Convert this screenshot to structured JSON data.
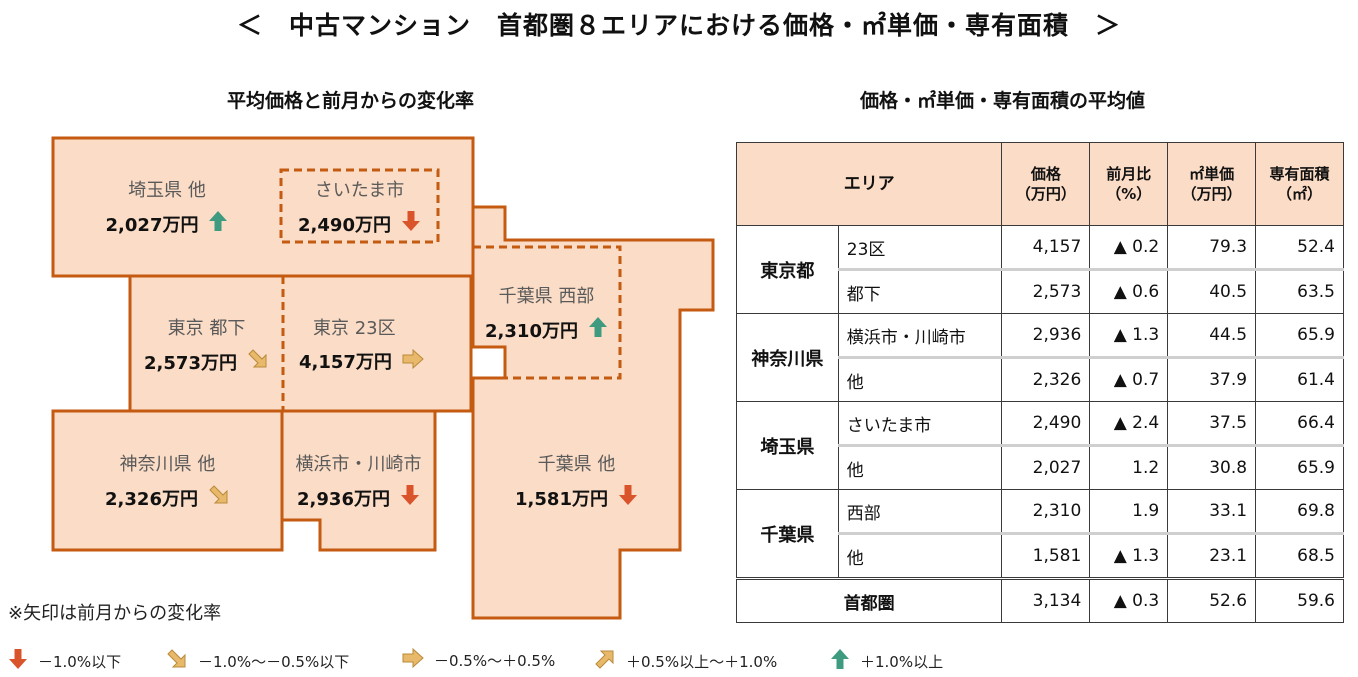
{
  "title": "＜　中古マンション　首都圏８エリアにおける価格・㎡単価・専有面積　＞",
  "map": {
    "heading": "平均価格と前月からの変化率",
    "regions": [
      {
        "id": "saitama-other",
        "name": "埼玉県 他",
        "price": "2,027万円",
        "trend": "up"
      },
      {
        "id": "saitama-city",
        "name": "さいたま市",
        "price": "2,490万円",
        "trend": "down"
      },
      {
        "id": "tokyo-toka",
        "name": "東京 都下",
        "price": "2,573万円",
        "trend": "slight-down"
      },
      {
        "id": "tokyo-23",
        "name": "東京 23区",
        "price": "4,157万円",
        "trend": "flat"
      },
      {
        "id": "chiba-west",
        "name": "千葉県 西部",
        "price": "2,310万円",
        "trend": "up"
      },
      {
        "id": "kanagawa-other",
        "name": "神奈川県 他",
        "price": "2,326万円",
        "trend": "slight-down"
      },
      {
        "id": "yokohama-kawasaki",
        "name": "横浜市・川崎市",
        "price": "2,936万円",
        "trend": "down"
      },
      {
        "id": "chiba-other",
        "name": "千葉県 他",
        "price": "1,581万円",
        "trend": "down"
      }
    ]
  },
  "note": "※矢印は前月からの変化率",
  "legend": [
    {
      "trend": "down",
      "label": "－1.0%以下"
    },
    {
      "trend": "slight-down",
      "label": "－1.0%～－0.5%以下"
    },
    {
      "trend": "flat",
      "label": "－0.5%～＋0.5%"
    },
    {
      "trend": "slight-up",
      "label": "＋0.5%以上～＋1.0%"
    },
    {
      "trend": "up",
      "label": "＋1.0%以上"
    }
  ],
  "table": {
    "heading": "価格・㎡単価・専有面積の平均値",
    "headers": {
      "area": "エリア",
      "price": [
        "価格",
        "（万円）"
      ],
      "change": [
        "前月比",
        "（%）"
      ],
      "unit_price": [
        "㎡単価",
        "（万円）"
      ],
      "floor_area": [
        "専有面積",
        "（㎡）"
      ]
    },
    "groups": [
      {
        "pref": "東京都",
        "rows": [
          {
            "area": "23区",
            "price": "4,157",
            "change": "▲ 0.2",
            "unit": "79.3",
            "floor": "52.4"
          },
          {
            "area": "都下",
            "price": "2,573",
            "change": "▲ 0.6",
            "unit": "40.5",
            "floor": "63.5"
          }
        ]
      },
      {
        "pref": "神奈川県",
        "rows": [
          {
            "area": "横浜市・川崎市",
            "price": "2,936",
            "change": "▲ 1.3",
            "unit": "44.5",
            "floor": "65.9"
          },
          {
            "area": "他",
            "price": "2,326",
            "change": "▲ 0.7",
            "unit": "37.9",
            "floor": "61.4"
          }
        ]
      },
      {
        "pref": "埼玉県",
        "rows": [
          {
            "area": "さいたま市",
            "price": "2,490",
            "change": "▲ 2.4",
            "unit": "37.5",
            "floor": "66.4"
          },
          {
            "area": "他",
            "price": "2,027",
            "change": "1.2",
            "unit": "30.8",
            "floor": "65.9"
          }
        ]
      },
      {
        "pref": "千葉県",
        "rows": [
          {
            "area": "西部",
            "price": "2,310",
            "change": "1.9",
            "unit": "33.1",
            "floor": "69.8"
          },
          {
            "area": "他",
            "price": "1,581",
            "change": "▲ 1.3",
            "unit": "23.1",
            "floor": "68.5"
          }
        ]
      }
    ],
    "total": {
      "area": "首都圏",
      "price": "3,134",
      "change": "▲ 0.3",
      "unit": "52.6",
      "floor": "59.6"
    }
  },
  "colors": {
    "region_fill": "#fbdcc6",
    "region_border": "#c55a11",
    "header_fill": "#fbdcc6",
    "arrow_down": "#d9532b",
    "arrow_slight_down": "#e8b96a",
    "arrow_flat": "#e8b96a",
    "arrow_slight_up": "#e8b96a",
    "arrow_up": "#3f9b80"
  }
}
